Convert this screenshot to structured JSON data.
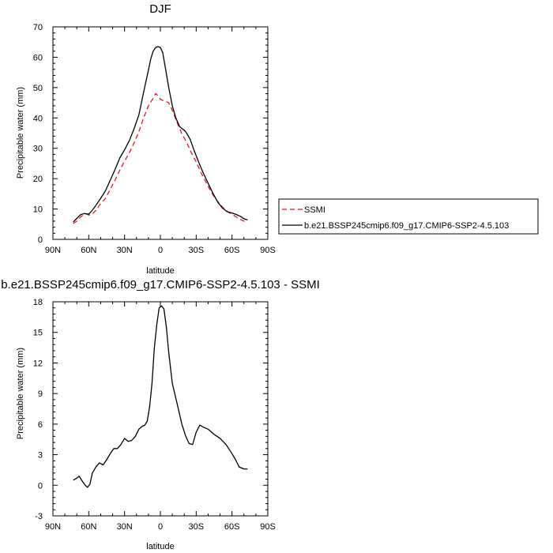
{
  "chart_data": [
    {
      "type": "line",
      "title": "DJF",
      "xlabel": "latitude",
      "ylabel": "Precipitable water (mm)",
      "xlim": [
        90,
        -90
      ],
      "ylim": [
        0,
        70
      ],
      "x_ticks": [
        90,
        60,
        30,
        0,
        -30,
        -60,
        -90
      ],
      "x_tick_labels": [
        "90N",
        "60N",
        "30N",
        "0",
        "30S",
        "60S",
        "90S"
      ],
      "y_ticks": [
        0,
        10,
        20,
        30,
        40,
        50,
        60,
        70
      ],
      "y_tick_labels": [
        "0",
        "10",
        "20",
        "30",
        "40",
        "50",
        "60",
        "70"
      ],
      "grid": false,
      "legend_position": "right",
      "series": [
        {
          "name": "SSMI",
          "color": "#e8141c",
          "dash": "dashed",
          "x": [
            73,
            70,
            67,
            64,
            62,
            60,
            57,
            54,
            50,
            46,
            42,
            38,
            34,
            30,
            26,
            22,
            18,
            14,
            10,
            6,
            4,
            2,
            0,
            -2,
            -4,
            -7,
            -10,
            -14,
            -18,
            -22,
            -26,
            -30,
            -34,
            -38,
            -42,
            -46,
            -50,
            -54,
            -58,
            -62,
            -66,
            -70,
            -73
          ],
          "y": [
            5.2,
            6.0,
            7.3,
            8.2,
            8.4,
            8.0,
            8.3,
            9.6,
            11.8,
            13.5,
            16.5,
            19.5,
            22.8,
            25.8,
            28.5,
            31.8,
            35.5,
            40.0,
            44.0,
            46.5,
            48.0,
            47.3,
            46.2,
            45.8,
            45.6,
            45.0,
            42.5,
            38.5,
            34.8,
            32.0,
            28.5,
            25.5,
            22.0,
            19.0,
            16.0,
            13.5,
            11.5,
            9.8,
            8.7,
            7.8,
            6.8,
            6.0,
            5.8
          ]
        },
        {
          "name": "b.e21.BSSP245cmip6.f09_g17.CMIP6-SSP2-4.5.103",
          "color": "#000000",
          "dash": "solid",
          "x": [
            73,
            70,
            67,
            64,
            62,
            60,
            57,
            54,
            50,
            46,
            42,
            38,
            34,
            30,
            26,
            22,
            18,
            14,
            10,
            8,
            6,
            4,
            2,
            0,
            -2,
            -4,
            -7,
            -10,
            -13,
            -16,
            -18,
            -20,
            -22,
            -25,
            -28,
            -32,
            -36,
            -40,
            -44,
            -48,
            -52,
            -56,
            -60,
            -63,
            -67,
            -70,
            -73
          ],
          "y": [
            5.7,
            6.9,
            8.1,
            8.5,
            8.4,
            8.3,
            9.6,
            11.2,
            13.5,
            16.0,
            19.5,
            23.0,
            26.8,
            29.5,
            32.5,
            36.5,
            41.0,
            48.5,
            55.8,
            59.5,
            62.0,
            63.2,
            63.5,
            63.2,
            61.5,
            57.0,
            50.0,
            44.0,
            40.0,
            37.2,
            36.5,
            36.0,
            35.0,
            32.9,
            29.6,
            25.5,
            21.8,
            18.5,
            15.2,
            12.3,
            10.3,
            9.1,
            8.7,
            8.3,
            7.6,
            6.8,
            6.4
          ]
        }
      ]
    },
    {
      "type": "line",
      "title": "b.e21.BSSP245cmip6.f09_g17.CMIP6-SSP2-4.5.103 - SSMI",
      "xlabel": "latitude",
      "ylabel": "Precipitable water (mm)",
      "xlim": [
        90,
        -90
      ],
      "ylim": [
        -3,
        18
      ],
      "x_ticks": [
        90,
        60,
        30,
        0,
        -30,
        -60,
        -90
      ],
      "x_tick_labels": [
        "90N",
        "60N",
        "30N",
        "0",
        "30S",
        "60S",
        "90S"
      ],
      "y_ticks": [
        -3,
        0,
        3,
        6,
        9,
        12,
        15,
        18
      ],
      "y_tick_labels": [
        "-3",
        "0",
        "3",
        "6",
        "9",
        "12",
        "15",
        "18"
      ],
      "grid": false,
      "series": [
        {
          "color": "#000000",
          "dash": "solid",
          "x": [
            73,
            70,
            68,
            66,
            63,
            61,
            59,
            57,
            54,
            51,
            48,
            45,
            42,
            39,
            36,
            33,
            30,
            27,
            24,
            21,
            18,
            15,
            13,
            11,
            9,
            7,
            5,
            3,
            1,
            -1,
            -3,
            -5,
            -7,
            -10,
            -14,
            -18,
            -21,
            -24,
            -27,
            -30,
            -33,
            -36,
            -40,
            -45,
            -50,
            -55,
            -60,
            -63,
            -66,
            -70,
            -73
          ],
          "y": [
            0.5,
            0.7,
            0.9,
            0.5,
            0.0,
            -0.2,
            0.1,
            1.2,
            1.8,
            2.2,
            2.0,
            2.5,
            3.1,
            3.6,
            3.6,
            4.0,
            4.6,
            4.3,
            4.4,
            4.8,
            5.5,
            5.8,
            5.9,
            6.3,
            7.7,
            10.0,
            13.5,
            15.8,
            17.4,
            17.6,
            17.3,
            15.5,
            13.0,
            10.0,
            8.0,
            6.0,
            4.9,
            4.1,
            4.0,
            5.2,
            5.9,
            5.7,
            5.5,
            5.0,
            4.6,
            4.0,
            3.1,
            2.5,
            1.8,
            1.6,
            1.6
          ]
        }
      ]
    }
  ]
}
